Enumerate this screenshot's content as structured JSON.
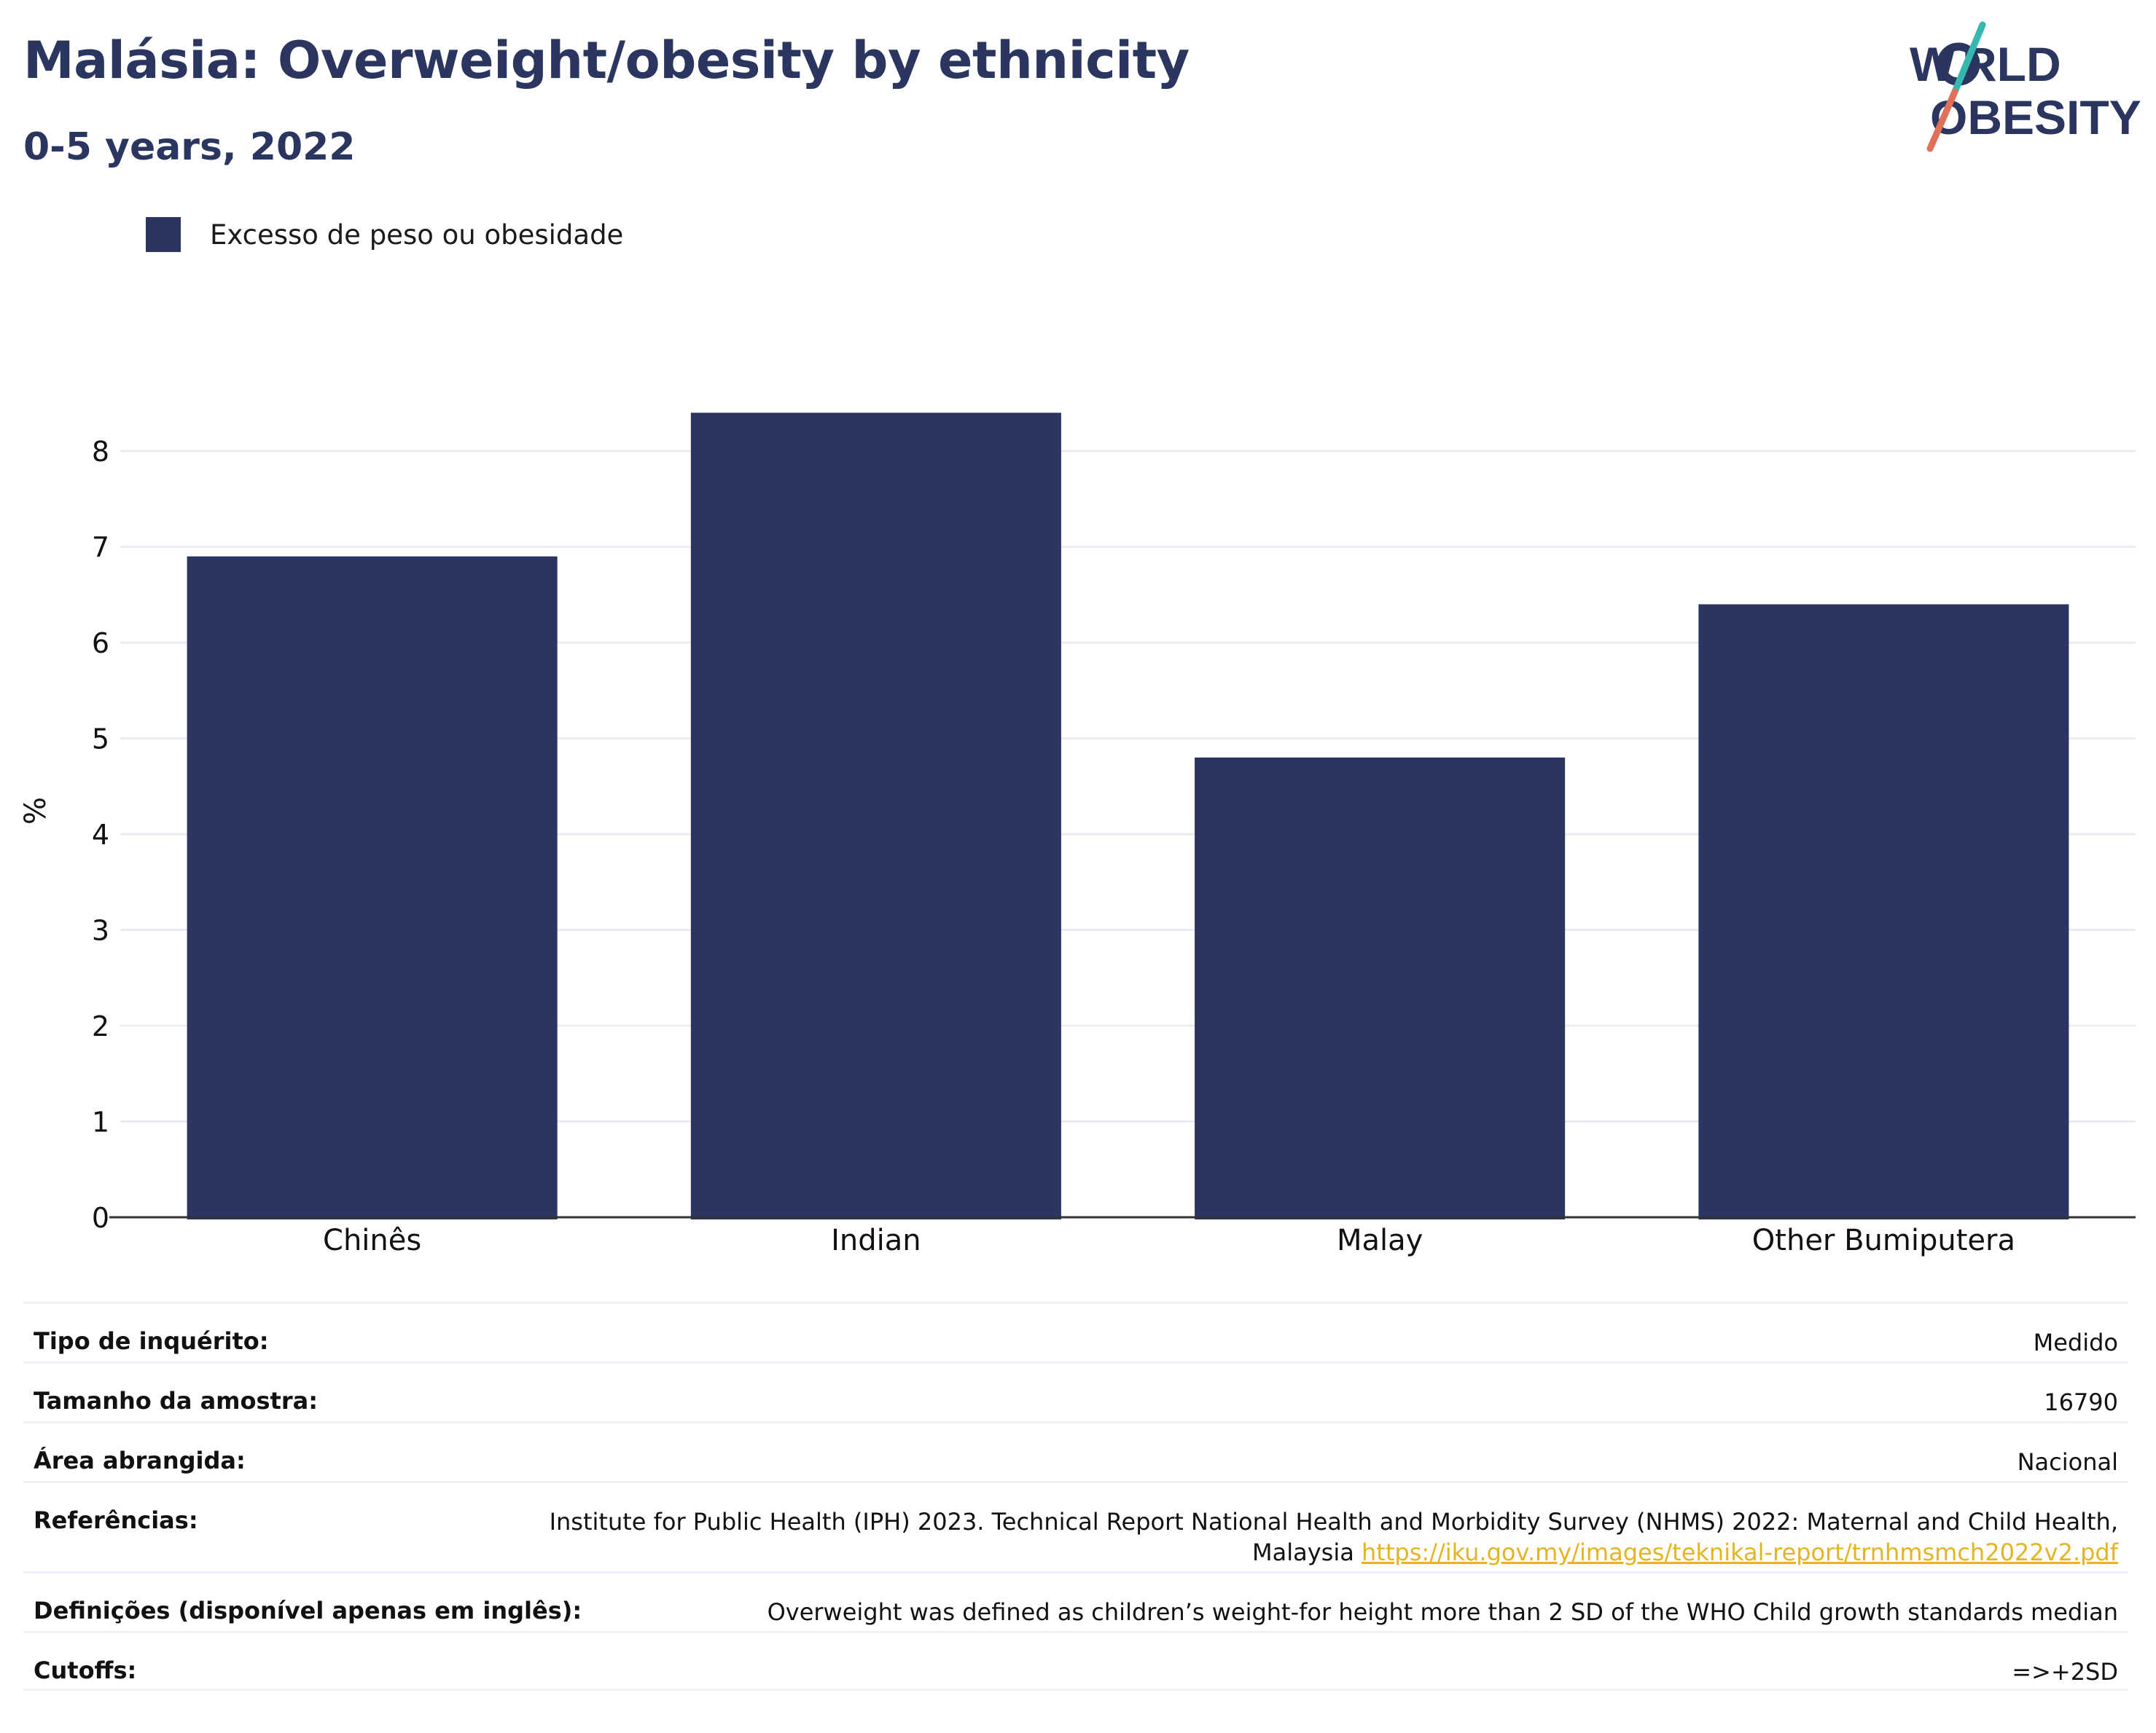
{
  "header": {
    "title": "Malásia: Overweight/obesity by ethnicity",
    "subtitle": "0-5 years, 2022",
    "logo_text": "WORLD OBESITY"
  },
  "colors": {
    "bar": "#2a3562",
    "title": "#2a3560",
    "grid": "#e8ebf0",
    "axis": "#333333",
    "link": "#e6b422",
    "logo_slash_top": "#36b8b0",
    "logo_slash_bottom": "#e0705a"
  },
  "chart_data": {
    "type": "bar",
    "categories": [
      "Chinês",
      "Indian",
      "Malay",
      "Other Bumiputera"
    ],
    "series": [
      {
        "name": "Excesso de peso ou obesidade",
        "values": [
          6.9,
          8.4,
          4.8,
          6.4
        ]
      }
    ],
    "ylabel": "%",
    "xlabel": "",
    "ylim": [
      0,
      8.45
    ],
    "yticks": [
      0,
      1,
      2,
      3,
      4,
      5,
      6,
      7,
      8
    ],
    "grid": true,
    "legend_position": "top-left"
  },
  "info": {
    "rows": [
      {
        "key": "Tipo de inquérito:",
        "value": "Medido"
      },
      {
        "key": "Tamanho da amostra:",
        "value": "16790"
      },
      {
        "key": "Área abrangida:",
        "value": "Nacional"
      },
      {
        "key": "Referências:",
        "value": "Institute for Public Health (IPH) 2023. Technical Report National Health and Morbidity Survey (NHMS) 2022: Maternal and Child Health,",
        "value2": "Malaysia",
        "link": "https://iku.gov.my/images/teknikal-report/trnhmsmch2022v2.pdf"
      },
      {
        "key": "Definições (disponível apenas em inglês):",
        "value": "Overweight was defined as children’s weight-for height more than 2 SD of the WHO Child growth standards median"
      },
      {
        "key": "Cutoffs:",
        "value": "=>+2SD"
      }
    ]
  }
}
